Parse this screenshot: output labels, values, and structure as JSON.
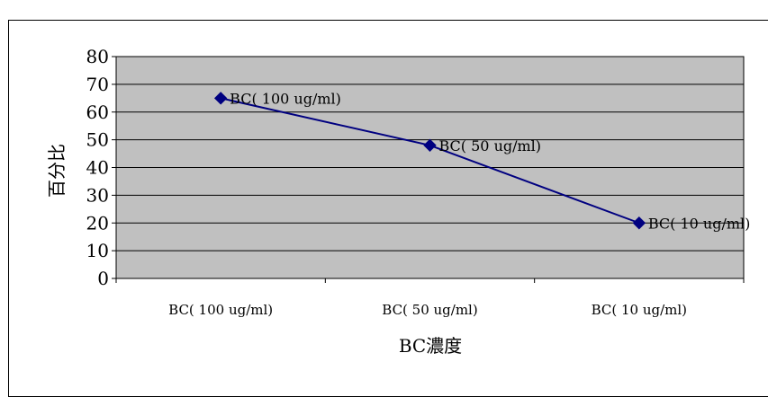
{
  "chart_data": {
    "type": "line",
    "categories": [
      "BC( 100 ug/ml)",
      "BC( 50 ug/ml)",
      "BC( 10 ug/ml)"
    ],
    "series": [
      {
        "values": [
          65,
          48,
          20
        ],
        "data_labels": [
          "BC( 100 ug/ml)",
          "BC( 50 ug/ml)",
          "BC( 10 ug/ml)"
        ],
        "color": "#000080",
        "marker": "diamond"
      }
    ],
    "title": "",
    "xlabel": "BC濃度",
    "ylabel": "百分比",
    "ylim": [
      0,
      80
    ],
    "yticks": [
      0,
      10,
      20,
      30,
      40,
      50,
      60,
      70,
      80
    ],
    "grid": true,
    "legend": "none",
    "plot_background": "#c0c0c0",
    "gridline_color": "#000000"
  }
}
